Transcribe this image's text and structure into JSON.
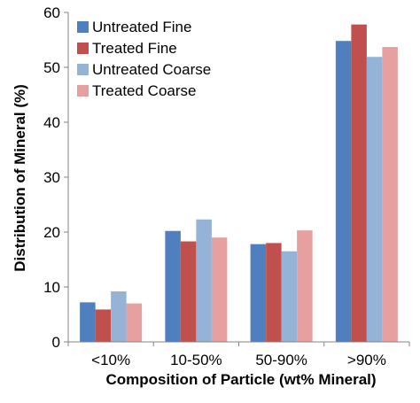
{
  "chart_data": {
    "type": "bar",
    "title": "",
    "xlabel": "Composition of Particle (wt% Mineral)",
    "ylabel": "Distribution of Mineral (%)",
    "categories": [
      "<10%",
      "10-50%",
      "50-90%",
      ">90%"
    ],
    "ylim": [
      0,
      60
    ],
    "yticks": [
      0,
      10,
      20,
      30,
      40,
      50,
      60
    ],
    "grid": false,
    "legend_position": "top-left",
    "series": [
      {
        "name": "Untreated Fine",
        "color": "#4f7fbf",
        "values": [
          7.2,
          20.2,
          17.8,
          54.8
        ]
      },
      {
        "name": "Treated Fine",
        "color": "#c0504d",
        "values": [
          5.9,
          18.3,
          18.0,
          57.8
        ]
      },
      {
        "name": "Untreated Coarse",
        "color": "#95b3d7",
        "values": [
          9.2,
          22.3,
          16.5,
          51.9
        ]
      },
      {
        "name": "Treated Coarse",
        "color": "#e6a09f",
        "values": [
          7.0,
          19.0,
          20.3,
          53.7
        ]
      }
    ]
  }
}
